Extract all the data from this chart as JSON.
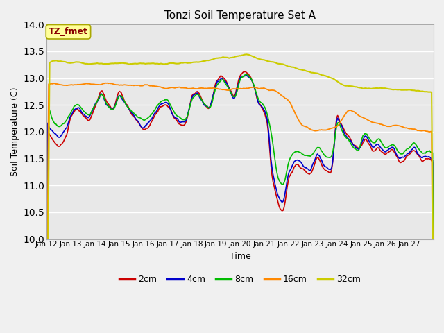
{
  "title": "Tonzi Soil Temperature Set A",
  "xlabel": "Time",
  "ylabel": "Soil Temperature (C)",
  "ylim": [
    10.0,
    14.0
  ],
  "yticks": [
    10.0,
    10.5,
    11.0,
    11.5,
    12.0,
    12.5,
    13.0,
    13.5,
    14.0
  ],
  "xtick_labels": [
    "Jan 12",
    "Jan 13",
    "Jan 14",
    "Jan 15",
    "Jan 16",
    "Jan 17",
    "Jan 18",
    "Jan 19",
    "Jan 20",
    "Jan 21",
    "Jan 22",
    "Jan 23",
    "Jan 24",
    "Jan 25",
    "Jan 26",
    "Jan 27"
  ],
  "legend_label": "TZ_fmet",
  "series_labels": [
    "2cm",
    "4cm",
    "8cm",
    "16cm",
    "32cm"
  ],
  "series_colors": [
    "#cc0000",
    "#0000cc",
    "#00bb00",
    "#ff8800",
    "#cccc00"
  ],
  "fig_bg_color": "#f0f0f0",
  "plot_bg_color": "#e8e8e8",
  "grid_color": "#ffffff",
  "annotation_box_color": "#ffff99",
  "annotation_text_color": "#880000",
  "annotation_border_color": "#aaa800"
}
